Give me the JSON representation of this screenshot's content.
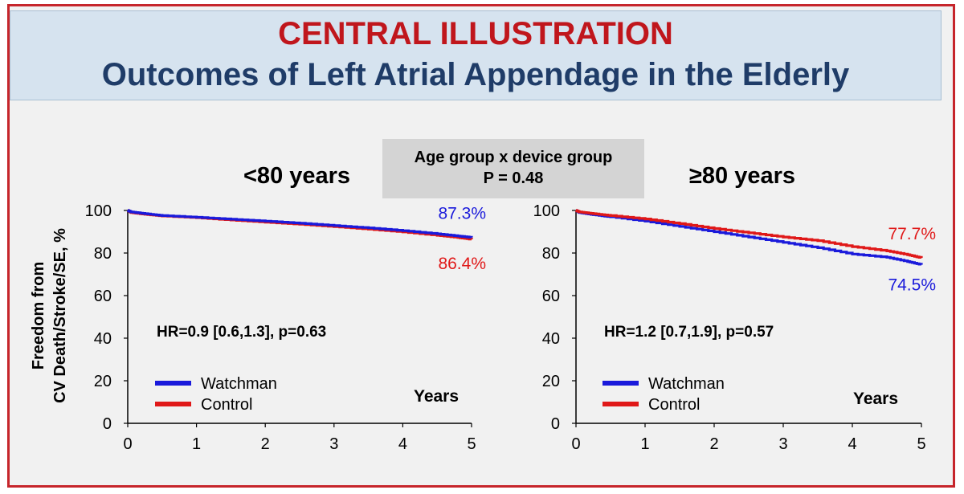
{
  "header": {
    "line1": "CENTRAL ILLUSTRATION",
    "line2": "Outcomes of Left Atrial Appendage in the Elderly"
  },
  "interaction_box": {
    "line1": "Age group x device group",
    "line2": "P = 0.48"
  },
  "shared_ylabel": {
    "line1": "Freedom from",
    "line2": "CV Death/Stroke/SE, %"
  },
  "colors": {
    "watchman": "#1a1adb",
    "control": "#e01818",
    "header_red": "#c0161c",
    "header_blue": "#1f3c68"
  },
  "chart_data": [
    {
      "type": "line",
      "title": "<80 years",
      "xlabel": "Years",
      "ylabel": "Freedom from CV Death/Stroke/SE, %",
      "xlim": [
        0,
        5
      ],
      "ylim": [
        0,
        100
      ],
      "xticks": [
        "0",
        "1",
        "2",
        "3",
        "4",
        "5"
      ],
      "yticks": [
        "0",
        "20",
        "40",
        "60",
        "80",
        "100"
      ],
      "annotation": "HR=0.9 [0.6,1.3], p=0.63",
      "legend": [
        "Watchman",
        "Control"
      ],
      "series": [
        {
          "name": "Watchman",
          "end_label": "87.3%",
          "x": [
            0,
            0.05,
            0.25,
            0.5,
            1,
            1.5,
            2,
            2.5,
            3,
            3.5,
            4,
            4.5,
            4.8,
            5
          ],
          "y": [
            100,
            99.3,
            98.5,
            97.6,
            96.8,
            95.9,
            95.0,
            94.0,
            92.9,
            91.8,
            90.5,
            89.0,
            88.0,
            87.3
          ]
        },
        {
          "name": "Control",
          "end_label": "86.4%",
          "x": [
            0,
            0.05,
            0.25,
            0.5,
            1,
            1.5,
            2,
            2.5,
            3,
            3.5,
            4,
            4.5,
            4.8,
            5
          ],
          "y": [
            100,
            99.0,
            98.2,
            97.4,
            96.6,
            95.5,
            94.5,
            93.5,
            92.4,
            91.2,
            89.9,
            88.3,
            87.3,
            86.4
          ]
        }
      ]
    },
    {
      "type": "line",
      "title": "≥80 years",
      "xlabel": "Years",
      "ylabel": "",
      "xlim": [
        0,
        5
      ],
      "ylim": [
        0,
        100
      ],
      "xticks": [
        "0",
        "1",
        "2",
        "3",
        "4",
        "5"
      ],
      "yticks": [
        "0",
        "20",
        "40",
        "60",
        "80",
        "100"
      ],
      "annotation": "HR=1.2 [0.7,1.9], p=0.57",
      "legend": [
        "Watchman",
        "Control"
      ],
      "series": [
        {
          "name": "Watchman",
          "end_label": "74.5%",
          "x": [
            0,
            0.05,
            0.25,
            0.5,
            1,
            1.5,
            2,
            2.5,
            3,
            3.5,
            4,
            4.5,
            4.8,
            5
          ],
          "y": [
            100,
            99.0,
            98.0,
            97.0,
            95.0,
            92.5,
            90.0,
            87.5,
            85.0,
            82.5,
            79.5,
            78.0,
            76.0,
            74.5
          ]
        },
        {
          "name": "Control",
          "end_label": "77.7%",
          "x": [
            0,
            0.05,
            0.25,
            0.5,
            1,
            1.5,
            2,
            2.5,
            3,
            3.5,
            4,
            4.5,
            4.8,
            5
          ],
          "y": [
            100,
            99.3,
            98.5,
            97.6,
            96.0,
            93.8,
            91.5,
            89.5,
            87.5,
            85.8,
            83.0,
            81.0,
            79.2,
            77.7
          ]
        }
      ]
    }
  ]
}
